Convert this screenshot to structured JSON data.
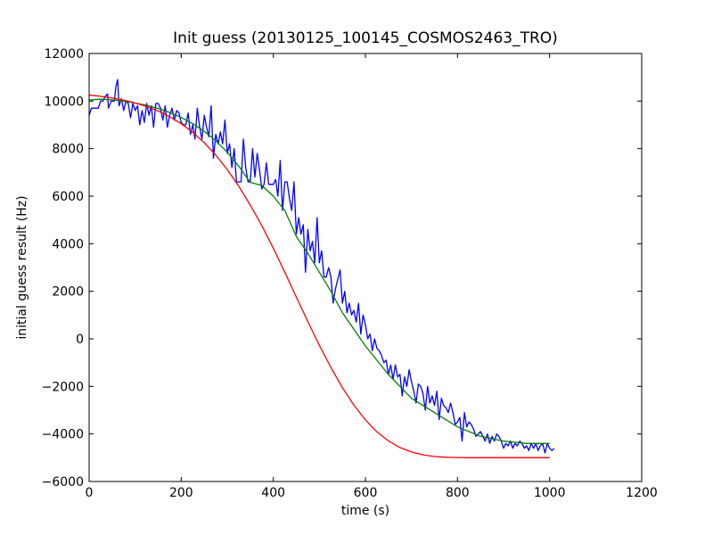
{
  "chart_data": {
    "type": "line",
    "title": "Init guess (20130125_100145_COSMOS2463_TRO)",
    "xlabel": "time (s)",
    "ylabel": "initial guess result (Hz)",
    "xlim": [
      0,
      1200
    ],
    "ylim": [
      -6000,
      12000
    ],
    "xticks": [
      "0",
      "200",
      "400",
      "600",
      "800",
      "1000",
      "1200"
    ],
    "yticks": [
      "12000",
      "10000",
      "8000",
      "6000",
      "4000",
      "2000",
      "0",
      "−2000",
      "−4000",
      "−6000"
    ],
    "grid": false,
    "legend": false,
    "series": [
      {
        "color": "#0000ff",
        "points": [
          [
            0,
            9400
          ],
          [
            5,
            9700
          ],
          [
            15,
            9700
          ],
          [
            20,
            9700
          ],
          [
            25,
            10000
          ],
          [
            30,
            10000
          ],
          [
            35,
            10200
          ],
          [
            40,
            10300
          ],
          [
            42,
            9700
          ],
          [
            48,
            10000
          ],
          [
            55,
            10000
          ],
          [
            58,
            10600
          ],
          [
            62,
            10900
          ],
          [
            65,
            9800
          ],
          [
            70,
            10100
          ],
          [
            75,
            9600
          ],
          [
            80,
            10000
          ],
          [
            85,
            9900
          ],
          [
            90,
            9300
          ],
          [
            95,
            9900
          ],
          [
            100,
            9600
          ],
          [
            105,
            9800
          ],
          [
            110,
            9000
          ],
          [
            115,
            9600
          ],
          [
            120,
            9100
          ],
          [
            125,
            9900
          ],
          [
            130,
            9400
          ],
          [
            135,
            9800
          ],
          [
            140,
            8900
          ],
          [
            145,
            9900
          ],
          [
            150,
            9900
          ],
          [
            155,
            9700
          ],
          [
            160,
            9200
          ],
          [
            165,
            9800
          ],
          [
            170,
            8900
          ],
          [
            175,
            9400
          ],
          [
            180,
            9700
          ],
          [
            185,
            9200
          ],
          [
            190,
            9600
          ],
          [
            195,
            9500
          ],
          [
            200,
            9100
          ],
          [
            205,
            9000
          ],
          [
            210,
            9000
          ],
          [
            215,
            9500
          ],
          [
            220,
            8600
          ],
          [
            225,
            9000
          ],
          [
            230,
            8400
          ],
          [
            235,
            9700
          ],
          [
            240,
            8900
          ],
          [
            245,
            8400
          ],
          [
            250,
            9400
          ],
          [
            255,
            8900
          ],
          [
            260,
            8500
          ],
          [
            265,
            9800
          ],
          [
            270,
            7600
          ],
          [
            275,
            8600
          ],
          [
            280,
            8200
          ],
          [
            285,
            8700
          ],
          [
            290,
            8200
          ],
          [
            295,
            9200
          ],
          [
            300,
            7800
          ],
          [
            305,
            8200
          ],
          [
            310,
            7200
          ],
          [
            315,
            8000
          ],
          [
            320,
            6600
          ],
          [
            325,
            6600
          ],
          [
            330,
            6600
          ],
          [
            335,
            8400
          ],
          [
            340,
            7200
          ],
          [
            345,
            6600
          ],
          [
            350,
            6600
          ],
          [
            355,
            8000
          ],
          [
            360,
            6800
          ],
          [
            365,
            7800
          ],
          [
            370,
            7100
          ],
          [
            375,
            6300
          ],
          [
            380,
            6500
          ],
          [
            385,
            7400
          ],
          [
            390,
            6500
          ],
          [
            395,
            6500
          ],
          [
            400,
            6500
          ],
          [
            405,
            6700
          ],
          [
            410,
            6000
          ],
          [
            415,
            7500
          ],
          [
            420,
            5400
          ],
          [
            425,
            6600
          ],
          [
            430,
            6600
          ],
          [
            435,
            5900
          ],
          [
            440,
            5400
          ],
          [
            445,
            6600
          ],
          [
            450,
            4400
          ],
          [
            455,
            5100
          ],
          [
            460,
            4400
          ],
          [
            465,
            4800
          ],
          [
            470,
            2800
          ],
          [
            475,
            4600
          ],
          [
            480,
            3700
          ],
          [
            485,
            4100
          ],
          [
            490,
            3200
          ],
          [
            495,
            5100
          ],
          [
            500,
            3200
          ],
          [
            505,
            3700
          ],
          [
            510,
            2600
          ],
          [
            515,
            2600
          ],
          [
            520,
            3000
          ],
          [
            525,
            2600
          ],
          [
            530,
            1500
          ],
          [
            535,
            2100
          ],
          [
            540,
            2500
          ],
          [
            545,
            2900
          ],
          [
            550,
            1500
          ],
          [
            555,
            2000
          ],
          [
            560,
            1100
          ],
          [
            565,
            1500
          ],
          [
            570,
            1000
          ],
          [
            575,
            1200
          ],
          [
            580,
            700
          ],
          [
            585,
            1500
          ],
          [
            590,
            200
          ],
          [
            595,
            1000
          ],
          [
            600,
            600
          ],
          [
            605,
            0
          ],
          [
            610,
            200
          ],
          [
            615,
            -500
          ],
          [
            620,
            0
          ],
          [
            625,
            -400
          ],
          [
            630,
            -500
          ],
          [
            635,
            -700
          ],
          [
            640,
            -1000
          ],
          [
            645,
            -900
          ],
          [
            650,
            -1500
          ],
          [
            655,
            -1100
          ],
          [
            660,
            -1700
          ],
          [
            665,
            -1100
          ],
          [
            670,
            -1600
          ],
          [
            675,
            -1500
          ],
          [
            680,
            -2400
          ],
          [
            685,
            -1600
          ],
          [
            690,
            -2000
          ],
          [
            695,
            -1300
          ],
          [
            700,
            -1800
          ],
          [
            705,
            -2200
          ],
          [
            710,
            -2700
          ],
          [
            715,
            -1900
          ],
          [
            720,
            -2000
          ],
          [
            725,
            -2300
          ],
          [
            730,
            -3000
          ],
          [
            735,
            -2000
          ],
          [
            740,
            -2700
          ],
          [
            745,
            -2400
          ],
          [
            750,
            -2800
          ],
          [
            755,
            -2200
          ],
          [
            760,
            -3400
          ],
          [
            765,
            -2500
          ],
          [
            770,
            -2800
          ],
          [
            775,
            -2900
          ],
          [
            780,
            -3100
          ],
          [
            785,
            -2700
          ],
          [
            790,
            -3100
          ],
          [
            795,
            -3600
          ],
          [
            800,
            -3500
          ],
          [
            805,
            -3300
          ],
          [
            810,
            -4300
          ],
          [
            815,
            -3100
          ],
          [
            820,
            -3700
          ],
          [
            825,
            -3500
          ],
          [
            830,
            -3600
          ],
          [
            835,
            -3800
          ],
          [
            840,
            -4100
          ],
          [
            845,
            -4000
          ],
          [
            850,
            -3900
          ],
          [
            855,
            -4100
          ],
          [
            860,
            -4300
          ],
          [
            865,
            -4000
          ],
          [
            870,
            -4400
          ],
          [
            875,
            -4100
          ],
          [
            880,
            -4300
          ],
          [
            885,
            -4000
          ],
          [
            890,
            -4100
          ],
          [
            895,
            -4300
          ],
          [
            900,
            -4600
          ],
          [
            905,
            -4400
          ],
          [
            910,
            -4500
          ],
          [
            915,
            -4300
          ],
          [
            920,
            -4600
          ],
          [
            925,
            -4400
          ],
          [
            930,
            -4500
          ],
          [
            935,
            -4300
          ],
          [
            940,
            -4400
          ],
          [
            945,
            -4600
          ],
          [
            950,
            -4500
          ],
          [
            955,
            -4700
          ],
          [
            960,
            -4400
          ],
          [
            965,
            -4600
          ],
          [
            970,
            -4400
          ],
          [
            975,
            -4700
          ],
          [
            980,
            -4500
          ],
          [
            985,
            -4400
          ],
          [
            990,
            -4800
          ],
          [
            995,
            -4400
          ],
          [
            1000,
            -4600
          ],
          [
            1005,
            -4700
          ],
          [
            1010,
            -4600
          ]
        ]
      },
      {
        "color": "#008000",
        "points": [
          [
            0,
            10050
          ],
          [
            25,
            10080
          ],
          [
            50,
            10050
          ],
          [
            75,
            10000
          ],
          [
            100,
            9920
          ],
          [
            125,
            9820
          ],
          [
            150,
            9690
          ],
          [
            175,
            9520
          ],
          [
            200,
            9310
          ],
          [
            225,
            9050
          ],
          [
            250,
            8730
          ],
          [
            275,
            8330
          ],
          [
            300,
            7850
          ],
          [
            325,
            7260
          ],
          [
            350,
            6580
          ],
          [
            375,
            6450
          ],
          [
            400,
            6000
          ],
          [
            425,
            5400
          ],
          [
            450,
            4300
          ],
          [
            475,
            3600
          ],
          [
            500,
            2800
          ],
          [
            525,
            2000
          ],
          [
            550,
            1100
          ],
          [
            575,
            400
          ],
          [
            600,
            -300
          ],
          [
            625,
            -900
          ],
          [
            650,
            -1500
          ],
          [
            675,
            -2000
          ],
          [
            700,
            -2500
          ],
          [
            725,
            -2800
          ],
          [
            750,
            -3100
          ],
          [
            775,
            -3400
          ],
          [
            800,
            -3700
          ],
          [
            825,
            -3900
          ],
          [
            850,
            -4100
          ],
          [
            875,
            -4200
          ],
          [
            900,
            -4300
          ],
          [
            925,
            -4350
          ],
          [
            950,
            -4400
          ],
          [
            975,
            -4400
          ],
          [
            1000,
            -4400
          ]
        ]
      },
      {
        "color": "#ff0000",
        "points": [
          [
            0,
            10250
          ],
          [
            25,
            10200
          ],
          [
            50,
            10130
          ],
          [
            75,
            10040
          ],
          [
            100,
            9920
          ],
          [
            125,
            9770
          ],
          [
            150,
            9580
          ],
          [
            175,
            9340
          ],
          [
            200,
            9050
          ],
          [
            225,
            8690
          ],
          [
            250,
            8250
          ],
          [
            275,
            7730
          ],
          [
            300,
            7120
          ],
          [
            325,
            6420
          ],
          [
            350,
            5630
          ],
          [
            375,
            4760
          ],
          [
            400,
            3810
          ],
          [
            425,
            2800
          ],
          [
            450,
            1760
          ],
          [
            475,
            730
          ],
          [
            500,
            -270
          ],
          [
            525,
            -1200
          ],
          [
            550,
            -2050
          ],
          [
            575,
            -2790
          ],
          [
            600,
            -3410
          ],
          [
            625,
            -3910
          ],
          [
            650,
            -4290
          ],
          [
            675,
            -4570
          ],
          [
            700,
            -4760
          ],
          [
            725,
            -4880
          ],
          [
            750,
            -4950
          ],
          [
            775,
            -4980
          ],
          [
            800,
            -4990
          ],
          [
            825,
            -5000
          ],
          [
            850,
            -5000
          ],
          [
            875,
            -5000
          ],
          [
            900,
            -5000
          ],
          [
            925,
            -5000
          ],
          [
            950,
            -5000
          ],
          [
            975,
            -5000
          ],
          [
            1000,
            -5000
          ]
        ]
      }
    ]
  }
}
